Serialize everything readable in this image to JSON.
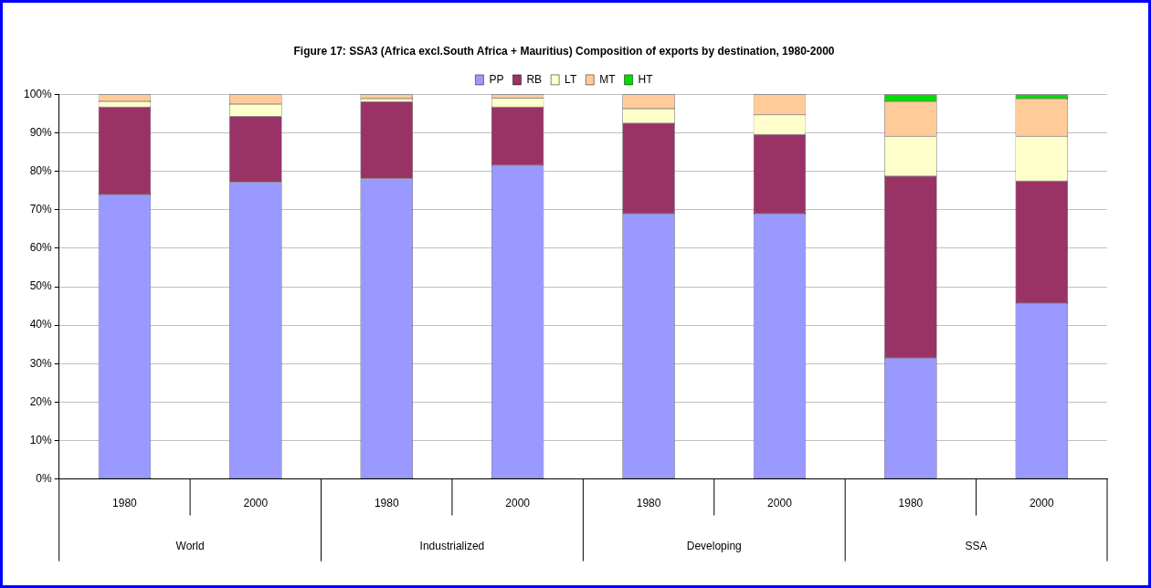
{
  "chart_data": {
    "type": "bar",
    "title": "Figure 17: SSA3 (Africa excl.South Africa + Mauritius) Composition of exports by destination, 1980-2000",
    "categories": [
      "1980",
      "2000",
      "1980",
      "2000",
      "1980",
      "2000",
      "1980",
      "2000"
    ],
    "annotations": [
      "World",
      "Industrialized",
      "Developing",
      "SSA"
    ],
    "stacked": true,
    "series": [
      {
        "name": "PP",
        "color": "#9999ff",
        "values": [
          74,
          77.2,
          78.1,
          81.5,
          69,
          69,
          31.5,
          45.7
        ]
      },
      {
        "name": "RB",
        "color": "#993366",
        "values": [
          22.7,
          17.1,
          20,
          15.2,
          23.5,
          20.6,
          47.2,
          31.8
        ]
      },
      {
        "name": "LT",
        "color": "#ffffcc",
        "values": [
          1.5,
          3.2,
          0.8,
          2.3,
          3.8,
          5.1,
          10.4,
          11.6
        ]
      },
      {
        "name": "MT",
        "color": "#ffcc99",
        "values": [
          1.8,
          2.5,
          1.1,
          1,
          3.7,
          5.3,
          9.1,
          9.8
        ]
      },
      {
        "name": "HT",
        "color": "#00dd00",
        "values": [
          0,
          0,
          0,
          0,
          0,
          0,
          1.8,
          1.1
        ]
      }
    ],
    "ylim": [
      0,
      100
    ],
    "yticks": [
      {
        "value": 0,
        "label": "0%"
      },
      {
        "value": 10,
        "label": "10%"
      },
      {
        "value": 20,
        "label": "20%"
      },
      {
        "value": 30,
        "label": "30%"
      },
      {
        "value": 40,
        "label": "40%"
      },
      {
        "value": 50,
        "label": "50%"
      },
      {
        "value": 60,
        "label": "60%"
      },
      {
        "value": 70,
        "label": "70%"
      },
      {
        "value": 80,
        "label": "80%"
      },
      {
        "value": 90,
        "label": "90%"
      },
      {
        "value": 100,
        "label": "100%"
      }
    ],
    "grid": "y",
    "legend": "top"
  }
}
